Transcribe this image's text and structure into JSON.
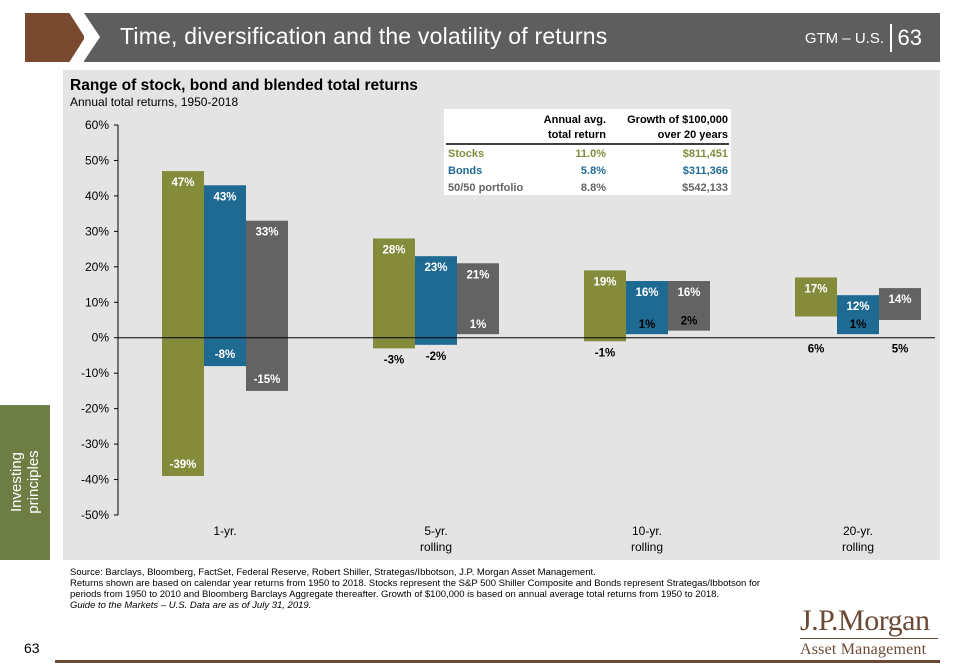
{
  "header": {
    "title": "Time, diversification and the volatility of returns",
    "gtm": "GTM – U.S.",
    "page": "63"
  },
  "sidebar": {
    "label_line1": "Investing",
    "label_line2": "principles"
  },
  "chart_data": {
    "type": "floating-bar",
    "title": "Range of stock, bond and blended total returns",
    "subtitle": "Annual total returns, 1950-2018",
    "ylim": [
      -50,
      60
    ],
    "yticks": [
      "60%",
      "50%",
      "40%",
      "30%",
      "20%",
      "10%",
      "0%",
      "-10%",
      "-20%",
      "-30%",
      "-40%",
      "-50%"
    ],
    "ytick_values": [
      60,
      50,
      40,
      30,
      20,
      10,
      0,
      -10,
      -20,
      -30,
      -40,
      -50
    ],
    "categories": [
      {
        "line1": "1-yr.",
        "line2": ""
      },
      {
        "line1": "5-yr.",
        "line2": "rolling"
      },
      {
        "line1": "10-yr.",
        "line2": "rolling"
      },
      {
        "line1": "20-yr.",
        "line2": "rolling"
      }
    ],
    "series": [
      {
        "name": "Stocks",
        "color": "#848c3b",
        "high": [
          47,
          28,
          19,
          17
        ],
        "low": [
          -39,
          -3,
          -1,
          6
        ],
        "high_labels": [
          "47%",
          "28%",
          "19%",
          "17%"
        ],
        "low_labels": [
          "-39%",
          "-3%",
          "-1%",
          "6%"
        ]
      },
      {
        "name": "Bonds",
        "color": "#1f6a93",
        "high": [
          43,
          23,
          16,
          12
        ],
        "low": [
          -8,
          -2,
          1,
          1
        ],
        "high_labels": [
          "43%",
          "23%",
          "16%",
          "12%"
        ],
        "low_labels": [
          "-8%",
          "-2%",
          "1%",
          "1%"
        ]
      },
      {
        "name": "50/50 portfolio",
        "color": "#636363",
        "high": [
          33,
          21,
          16,
          14
        ],
        "low": [
          -15,
          1,
          2,
          5
        ],
        "high_labels": [
          "33%",
          "21%",
          "16%",
          "14%"
        ],
        "low_labels": [
          "-15%",
          "1%",
          "2%",
          "5%"
        ]
      }
    ],
    "table": {
      "col1_header_l1": "Annual avg.",
      "col1_header_l2": "total return",
      "col2_header_l1": "Growth of $100,000",
      "col2_header_l2": "over 20 years",
      "rows": [
        {
          "name": "Stocks",
          "avg": "11.0%",
          "growth": "$811,451",
          "color": "#848c3b"
        },
        {
          "name": "Bonds",
          "avg": "5.8%",
          "growth": "$311,366",
          "color": "#1f6a93"
        },
        {
          "name": "50/50 portfolio",
          "avg": "8.8%",
          "growth": "$542,133",
          "color": "#636363"
        }
      ]
    }
  },
  "footnotes": {
    "line1": "Source: Barclays, Bloomberg, FactSet, Federal Reserve, Robert Shiller, Strategas/Ibbotson, J.P. Morgan Asset Management.",
    "line2": "Returns shown are based on calendar year returns from 1950 to 2018. Stocks represent the S&P 500 Shiller Composite and Bonds represent Strategas/Ibbotson for periods from 1950 to 2010 and Bloomberg Barclays Aggregate thereafter. Growth of $100,000 is based on annual average total returns from 1950 to 2018.",
    "line3": "Guide to the Markets – U.S. Data are as of July 31, 2019."
  },
  "footer": {
    "page": "63",
    "logo_line1": "J.P.Morgan",
    "logo_line2": "Asset Management"
  }
}
